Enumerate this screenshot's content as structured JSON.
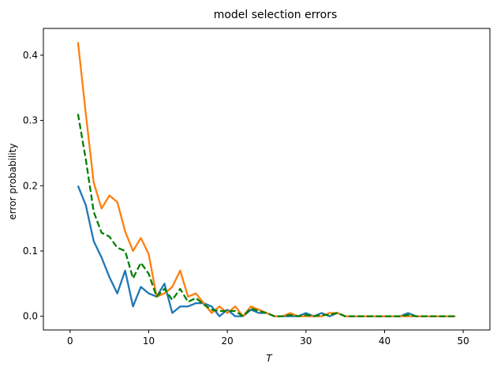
{
  "chart_data": {
    "type": "line",
    "title": "model selection errors",
    "xlabel": "T",
    "ylabel": "error probability",
    "xlim": [
      -3.4,
      53.4
    ],
    "ylim": [
      -0.021,
      0.441
    ],
    "xticks": [
      0,
      10,
      20,
      30,
      40,
      50
    ],
    "yticks": [
      0.0,
      0.1,
      0.2,
      0.3,
      0.4
    ],
    "xtick_labels": [
      "0",
      "10",
      "20",
      "30",
      "40",
      "50"
    ],
    "ytick_labels": [
      "0.0",
      "0.1",
      "0.2",
      "0.3",
      "0.4"
    ],
    "grid": false,
    "x": [
      1,
      2,
      3,
      4,
      5,
      6,
      7,
      8,
      9,
      10,
      11,
      12,
      13,
      14,
      15,
      16,
      17,
      18,
      19,
      20,
      21,
      22,
      23,
      24,
      25,
      26,
      27,
      28,
      29,
      30,
      31,
      32,
      33,
      34,
      35,
      36,
      37,
      38,
      39,
      40,
      41,
      42,
      43,
      44,
      45,
      46,
      47,
      48,
      49
    ],
    "series": [
      {
        "color": "#1f77b4",
        "style": "solid",
        "values": [
          0.2,
          0.17,
          0.115,
          0.09,
          0.06,
          0.035,
          0.07,
          0.015,
          0.045,
          0.035,
          0.03,
          0.05,
          0.005,
          0.015,
          0.015,
          0.02,
          0.02,
          0.015,
          0.0,
          0.01,
          0.0,
          0.0,
          0.01,
          0.005,
          0.005,
          0.0,
          0.0,
          0.0,
          0.0,
          0.005,
          0.0,
          0.005,
          0.0,
          0.005,
          0.0,
          0.0,
          0.0,
          0.0,
          0.0,
          0.0,
          0.0,
          0.0,
          0.005,
          0.0,
          0.0,
          0.0,
          0.0,
          0.0,
          0.0
        ]
      },
      {
        "color": "#ff7f0e",
        "style": "solid",
        "values": [
          0.42,
          0.31,
          0.205,
          0.165,
          0.185,
          0.175,
          0.13,
          0.1,
          0.12,
          0.095,
          0.03,
          0.035,
          0.045,
          0.07,
          0.03,
          0.035,
          0.02,
          0.005,
          0.015,
          0.005,
          0.015,
          0.0,
          0.015,
          0.01,
          0.005,
          0.0,
          0.0,
          0.005,
          0.0,
          0.0,
          0.0,
          0.0,
          0.005,
          0.005,
          0.0,
          0.0,
          0.0,
          0.0,
          0.0,
          0.0,
          0.0,
          0.0,
          0.0,
          0.0,
          0.0,
          0.0,
          0.0,
          0.0,
          0.0
        ]
      },
      {
        "color": "#008000",
        "style": "dashed",
        "values": [
          0.31,
          0.24,
          0.16,
          0.128,
          0.122,
          0.105,
          0.1,
          0.058,
          0.082,
          0.065,
          0.03,
          0.042,
          0.025,
          0.042,
          0.022,
          0.028,
          0.018,
          0.01,
          0.008,
          0.008,
          0.008,
          0.0,
          0.012,
          0.008,
          0.005,
          0.0,
          0.0,
          0.002,
          0.0,
          0.002,
          0.0,
          0.002,
          0.002,
          0.005,
          0.0,
          0.0,
          0.0,
          0.0,
          0.0,
          0.0,
          0.0,
          0.0,
          0.002,
          0.0,
          0.0,
          0.0,
          0.0,
          0.0,
          0.0
        ]
      }
    ]
  }
}
